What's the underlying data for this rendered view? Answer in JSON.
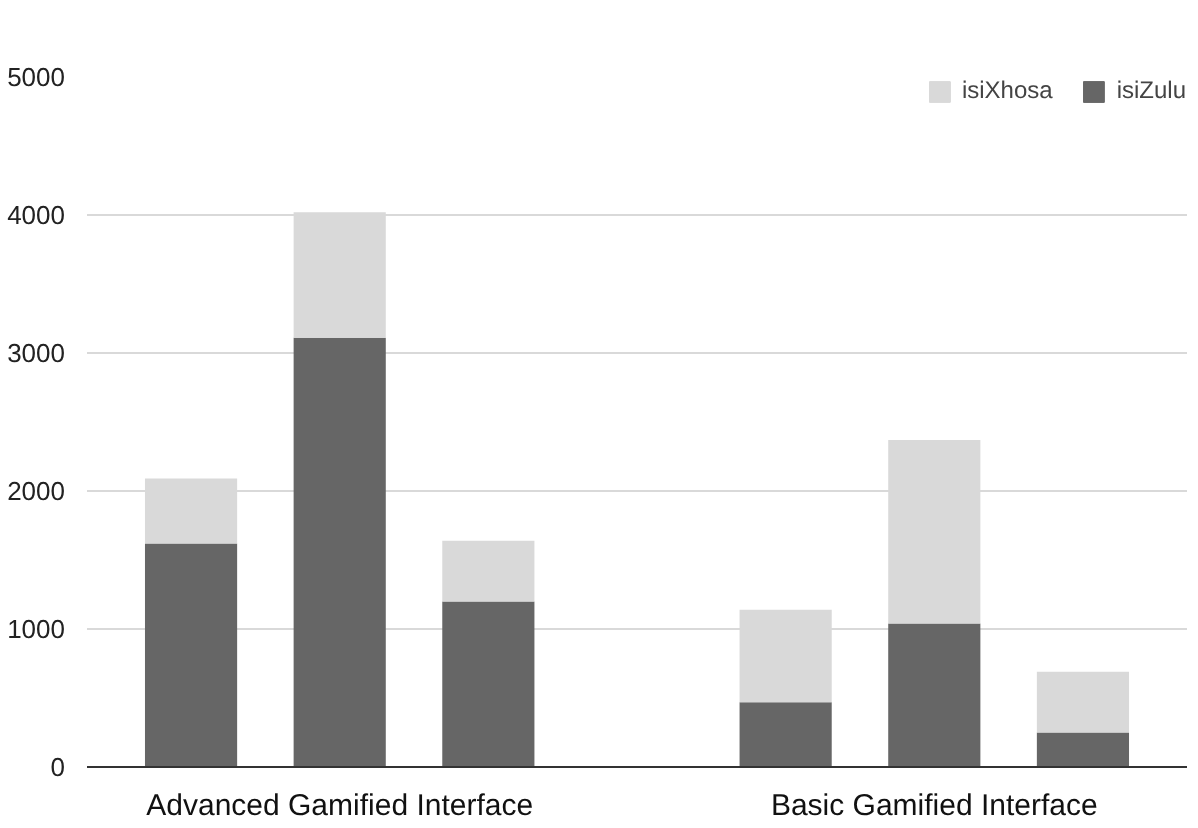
{
  "chart_data": {
    "type": "bar",
    "stacked": true,
    "categories": [
      null,
      "Advanced Gamified Interface",
      null,
      null,
      null,
      "Basic Gamified Interface",
      null
    ],
    "series": [
      {
        "name": "isiZulu",
        "color": "#666666",
        "values": [
          1620,
          3110,
          1200,
          null,
          470,
          1040,
          250
        ]
      },
      {
        "name": "isiXhosa",
        "color": "#d9d9d9",
        "values": [
          470,
          910,
          440,
          null,
          670,
          1330,
          440
        ]
      }
    ],
    "ylim": [
      0,
      5000
    ],
    "yticks": [
      0,
      1000,
      2000,
      3000,
      4000,
      5000
    ],
    "grid": "y",
    "legend": "top right"
  }
}
